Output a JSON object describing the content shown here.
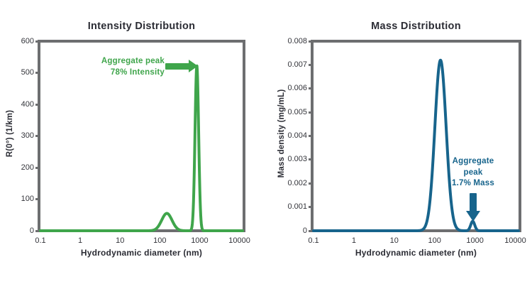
{
  "colors": {
    "intensity_green": "#3fa54b",
    "mass_teal": "#17648c",
    "plot_border_gray": "#6d6e70",
    "title_text": "#2b2c34",
    "tick_text": "#33343a",
    "background": "#ffffff"
  },
  "chart_data": [
    {
      "type": "line",
      "title": "Intensity Distribution",
      "xlabel": "Hydrodynamic diameter (nm)",
      "ylabel": "R(0°) (1/km)",
      "x_scale": "log",
      "xlim": [
        0.1,
        12000
      ],
      "ylim": [
        0,
        600
      ],
      "x_tick_labels": [
        "0.1",
        "1",
        "10",
        "100",
        "1000",
        "10000"
      ],
      "y_tick_labels": [
        "600",
        "500",
        "400",
        "300",
        "200",
        "100",
        "0"
      ],
      "grid": false,
      "legend": "none",
      "line_color": "#3fa54b",
      "series": [
        {
          "name": "Intensity distribution",
          "peaks": [
            {
              "center_nm": 150,
              "peak_value": 55,
              "sigma_log10": 0.13
            },
            {
              "center_nm": 850,
              "peak_value": 523,
              "sigma_log10": 0.045
            }
          ]
        }
      ],
      "annotation": {
        "lines": [
          "Aggregate peak",
          "78% Intensity"
        ],
        "arrow_direction": "right",
        "arrow_target": {
          "x_nm": 850,
          "y_value": 523
        }
      }
    },
    {
      "type": "line",
      "title": "Mass Distribution",
      "xlabel": "Hydrodynamic diameter (nm)",
      "ylabel": "Mass density (mg/mL)",
      "x_scale": "log",
      "xlim": [
        0.1,
        12000
      ],
      "ylim": [
        0,
        0.008
      ],
      "x_tick_labels": [
        "0.1",
        "1",
        "10",
        "100",
        "1000",
        "10000"
      ],
      "y_tick_labels": [
        "0.008",
        "0.007",
        "0.006",
        "0.005",
        "0.004",
        "0.003",
        "0.002",
        "0.001",
        "0"
      ],
      "grid": false,
      "legend": "none",
      "line_color": "#17648c",
      "series": [
        {
          "name": "Mass distribution",
          "peaks": [
            {
              "center_nm": 140,
              "peak_value": 0.0072,
              "sigma_log10": 0.14
            },
            {
              "center_nm": 880,
              "peak_value": 0.0004,
              "sigma_log10": 0.05
            }
          ]
        }
      ],
      "annotation": {
        "lines": [
          "Aggregate",
          "peak",
          "1.7% Mass"
        ],
        "arrow_direction": "down",
        "arrow_target": {
          "x_nm": 880,
          "y_value": 0.0004
        }
      }
    }
  ]
}
